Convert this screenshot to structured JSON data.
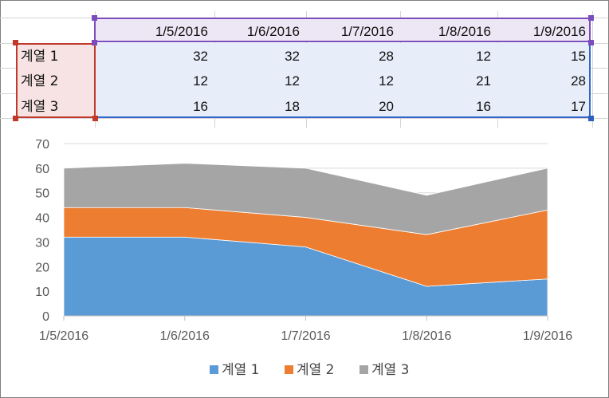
{
  "table": {
    "dates": [
      "1/5/2016",
      "1/6/2016",
      "1/7/2016",
      "1/8/2016",
      "1/9/2016"
    ],
    "rows": [
      {
        "label": "계열 1",
        "values": [
          32,
          32,
          28,
          12,
          15
        ]
      },
      {
        "label": "계열 2",
        "values": [
          12,
          12,
          12,
          21,
          28
        ]
      },
      {
        "label": "계열 3",
        "values": [
          16,
          18,
          20,
          16,
          17
        ]
      }
    ]
  },
  "colors": {
    "series1": "#5b9bd5",
    "series2": "#ed7d31",
    "series3": "#a5a5a5",
    "header_range": "#7b4cbc",
    "label_range": "#c0392b",
    "value_range": "#2e5fbd"
  },
  "chart_data": {
    "type": "area",
    "stacked": true,
    "x": [
      "1/5/2016",
      "1/6/2016",
      "1/7/2016",
      "1/8/2016",
      "1/9/2016"
    ],
    "series": [
      {
        "name": "계열 1",
        "values": [
          32,
          32,
          28,
          12,
          15
        ],
        "color": "#5b9bd5"
      },
      {
        "name": "계열 2",
        "values": [
          12,
          12,
          12,
          21,
          28
        ],
        "color": "#ed7d31"
      },
      {
        "name": "계열 3",
        "values": [
          16,
          18,
          20,
          16,
          17
        ],
        "color": "#a5a5a5"
      }
    ],
    "ylim": [
      0,
      70
    ],
    "yticks": [
      0,
      10,
      20,
      30,
      40,
      50,
      60,
      70
    ],
    "grid": true,
    "legend": "bottom",
    "title": "",
    "xlabel": "",
    "ylabel": ""
  }
}
